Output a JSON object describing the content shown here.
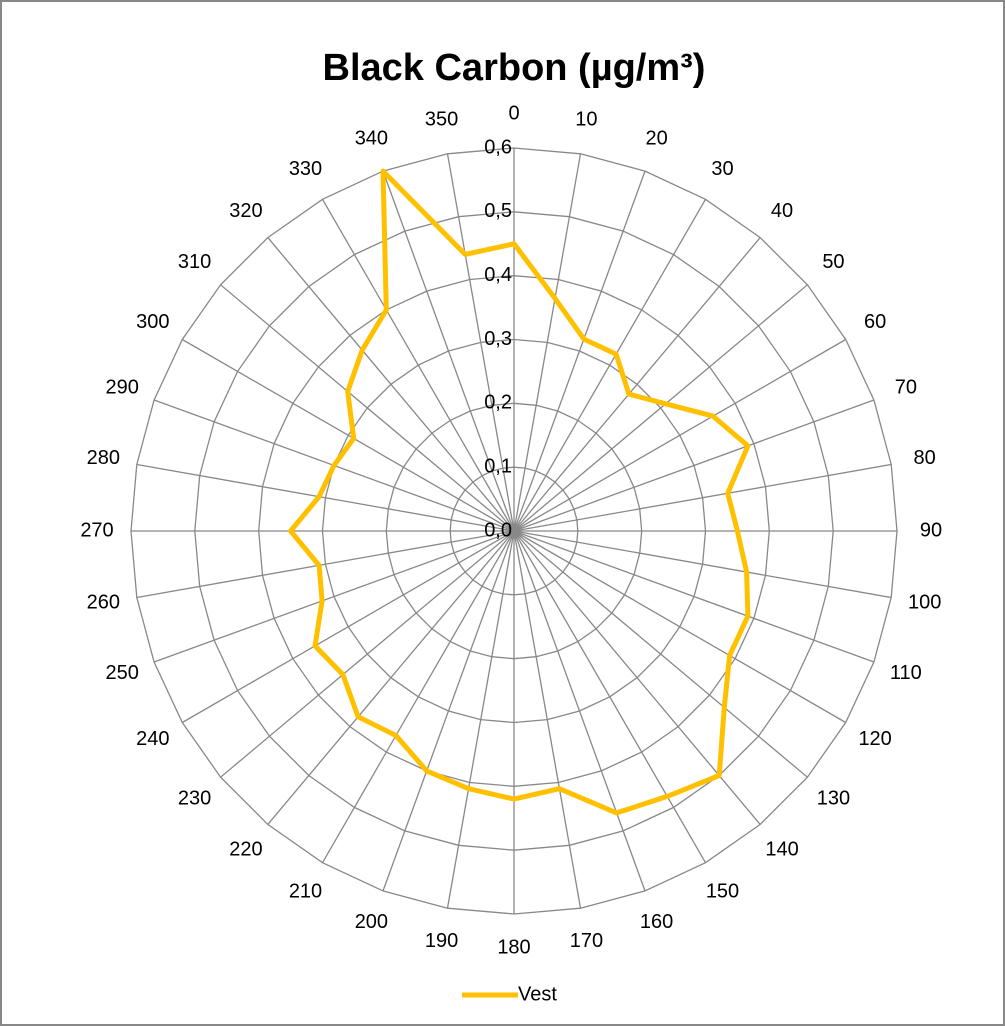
{
  "chart_data": {
    "type": "radar",
    "title": "Black Carbon (µg/m³)",
    "categories": [
      "0",
      "10",
      "20",
      "30",
      "40",
      "50",
      "60",
      "70",
      "80",
      "90",
      "100",
      "110",
      "120",
      "130",
      "140",
      "150",
      "160",
      "170",
      "180",
      "190",
      "200",
      "210",
      "220",
      "230",
      "240",
      "250",
      "260",
      "270",
      "280",
      "290",
      "300",
      "310",
      "320",
      "330",
      "340",
      "350"
    ],
    "series": [
      {
        "name": "Vest",
        "color": "#ffc000",
        "values": [
          0.45,
          0.37,
          0.32,
          0.32,
          0.28,
          0.31,
          0.36,
          0.39,
          0.34,
          0.35,
          0.37,
          0.39,
          0.39,
          0.43,
          0.5,
          0.48,
          0.47,
          0.41,
          0.42,
          0.41,
          0.4,
          0.37,
          0.38,
          0.35,
          0.36,
          0.32,
          0.31,
          0.35,
          0.31,
          0.3,
          0.29,
          0.34,
          0.37,
          0.4,
          0.6,
          0.44
        ]
      }
    ],
    "ylim": [
      0,
      0.6
    ],
    "yticks": [
      {
        "value": 0,
        "label": "0,0"
      },
      {
        "value": 0.1,
        "label": "0,1"
      },
      {
        "value": 0.2,
        "label": "0,2"
      },
      {
        "value": 0.3,
        "label": "0,3"
      },
      {
        "value": 0.4,
        "label": "0,4"
      },
      {
        "value": 0.5,
        "label": "0,5"
      },
      {
        "value": 0.6,
        "label": "0,6"
      }
    ],
    "grid": true,
    "legend": "bottom"
  }
}
